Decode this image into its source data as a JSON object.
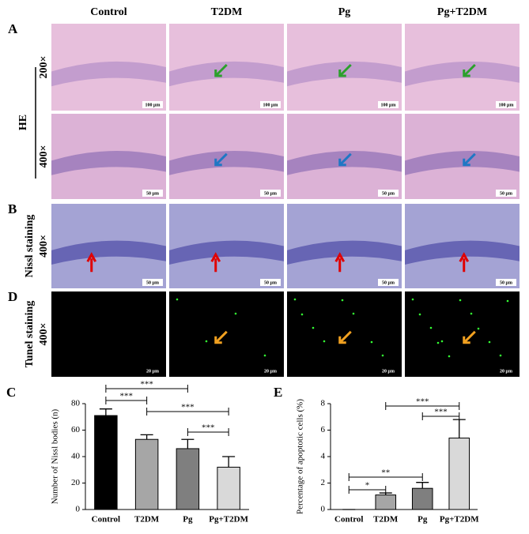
{
  "image_grid": {
    "columns": [
      "Control",
      "T2DM",
      "Pg",
      "Pg+T2DM"
    ],
    "group_label": "HE",
    "rows": [
      {
        "panel": "A",
        "magnification": "200×",
        "scale_bar": "100 μm"
      },
      {
        "magnification": "400×",
        "scale_bar": "50 μm"
      },
      {
        "panel": "B",
        "label": "Nissl staining",
        "magnification": "400×",
        "scale_bar": "50 μm"
      },
      {
        "panel": "D",
        "label": "Tunel staining",
        "magnification": "400×",
        "scale_bar": "20 μm"
      }
    ]
  },
  "chart_data": [
    {
      "type": "bar",
      "panel": "C",
      "y_label": "Number of Nissl bodies (n)",
      "categories": [
        "Control",
        "T2DM",
        "Pg",
        "Pg+T2DM"
      ],
      "values": [
        71,
        53,
        46,
        32
      ],
      "errors": [
        5,
        3.5,
        7,
        8
      ],
      "colors": [
        "#000000",
        "#a6a6a6",
        "#7f7f7f",
        "#d9d9d9"
      ],
      "ylim": [
        0,
        80
      ],
      "yticks": [
        0,
        20,
        40,
        60,
        80
      ],
      "annotations": [
        {
          "label": "***",
          "groups": [
            "Control",
            "Pg"
          ]
        },
        {
          "label": "***",
          "groups": [
            "Control",
            "T2DM"
          ]
        },
        {
          "label": "***",
          "groups": [
            "T2DM",
            "Pg+T2DM"
          ]
        },
        {
          "label": "***",
          "groups": [
            "Pg",
            "Pg+T2DM"
          ]
        }
      ]
    },
    {
      "type": "bar",
      "panel": "E",
      "y_label": "Percentage of apoptotic cells (%)",
      "categories": [
        "Control",
        "T2DM",
        "Pg",
        "Pg+T2DM"
      ],
      "values": [
        0,
        1.1,
        1.6,
        5.4
      ],
      "errors": [
        0,
        0.15,
        0.45,
        1.4
      ],
      "colors": [
        "#000000",
        "#a6a6a6",
        "#7f7f7f",
        "#d9d9d9"
      ],
      "ylim": [
        0,
        8
      ],
      "yticks": [
        0,
        2,
        4,
        6,
        8
      ],
      "annotations": [
        {
          "label": "***",
          "groups": [
            "T2DM",
            "Pg+T2DM"
          ]
        },
        {
          "label": "***",
          "groups": [
            "Pg",
            "Pg+T2DM"
          ]
        },
        {
          "label": "**",
          "groups": [
            "Control",
            "Pg"
          ]
        },
        {
          "label": "*",
          "groups": [
            "Control",
            "T2DM"
          ]
        }
      ]
    }
  ]
}
